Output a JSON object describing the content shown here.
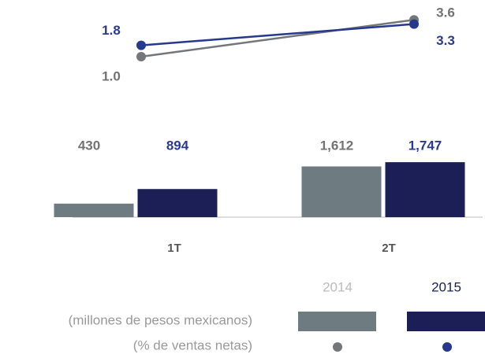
{
  "chart_data": {
    "type": "bar",
    "categories": [
      "1T",
      "2T"
    ],
    "ylim": [
      0,
      2000
    ],
    "y2lim": [
      0,
      5
    ],
    "series": [
      {
        "name": "2014",
        "color": "#6e7b80",
        "label_color": "#737373",
        "legend_color": "#bbbbbb",
        "values": [
          430,
          1612
        ],
        "value_labels": [
          "430",
          "1,612"
        ]
      },
      {
        "name": "2015",
        "color": "#1c1f55",
        "label_color": "#2b3990",
        "legend_color": "#1c1f55",
        "values": [
          894,
          1747
        ],
        "value_labels": [
          "894",
          "1,747"
        ]
      },
      {
        "name": "2014",
        "type": "line",
        "axis": "y2",
        "color": "#737779",
        "label_color": "#737373",
        "values": [
          1.0,
          3.6
        ],
        "value_labels": [
          "1.0",
          "3.6"
        ]
      },
      {
        "name": "2015",
        "type": "line",
        "axis": "y2",
        "color": "#26398c",
        "label_color": "#2b3990",
        "values": [
          1.8,
          3.3
        ],
        "value_labels": [
          "1.8",
          "3.3"
        ]
      }
    ],
    "units": [
      "(millones de pesos mexicanos)",
      "(% de ventas netas)"
    ]
  }
}
